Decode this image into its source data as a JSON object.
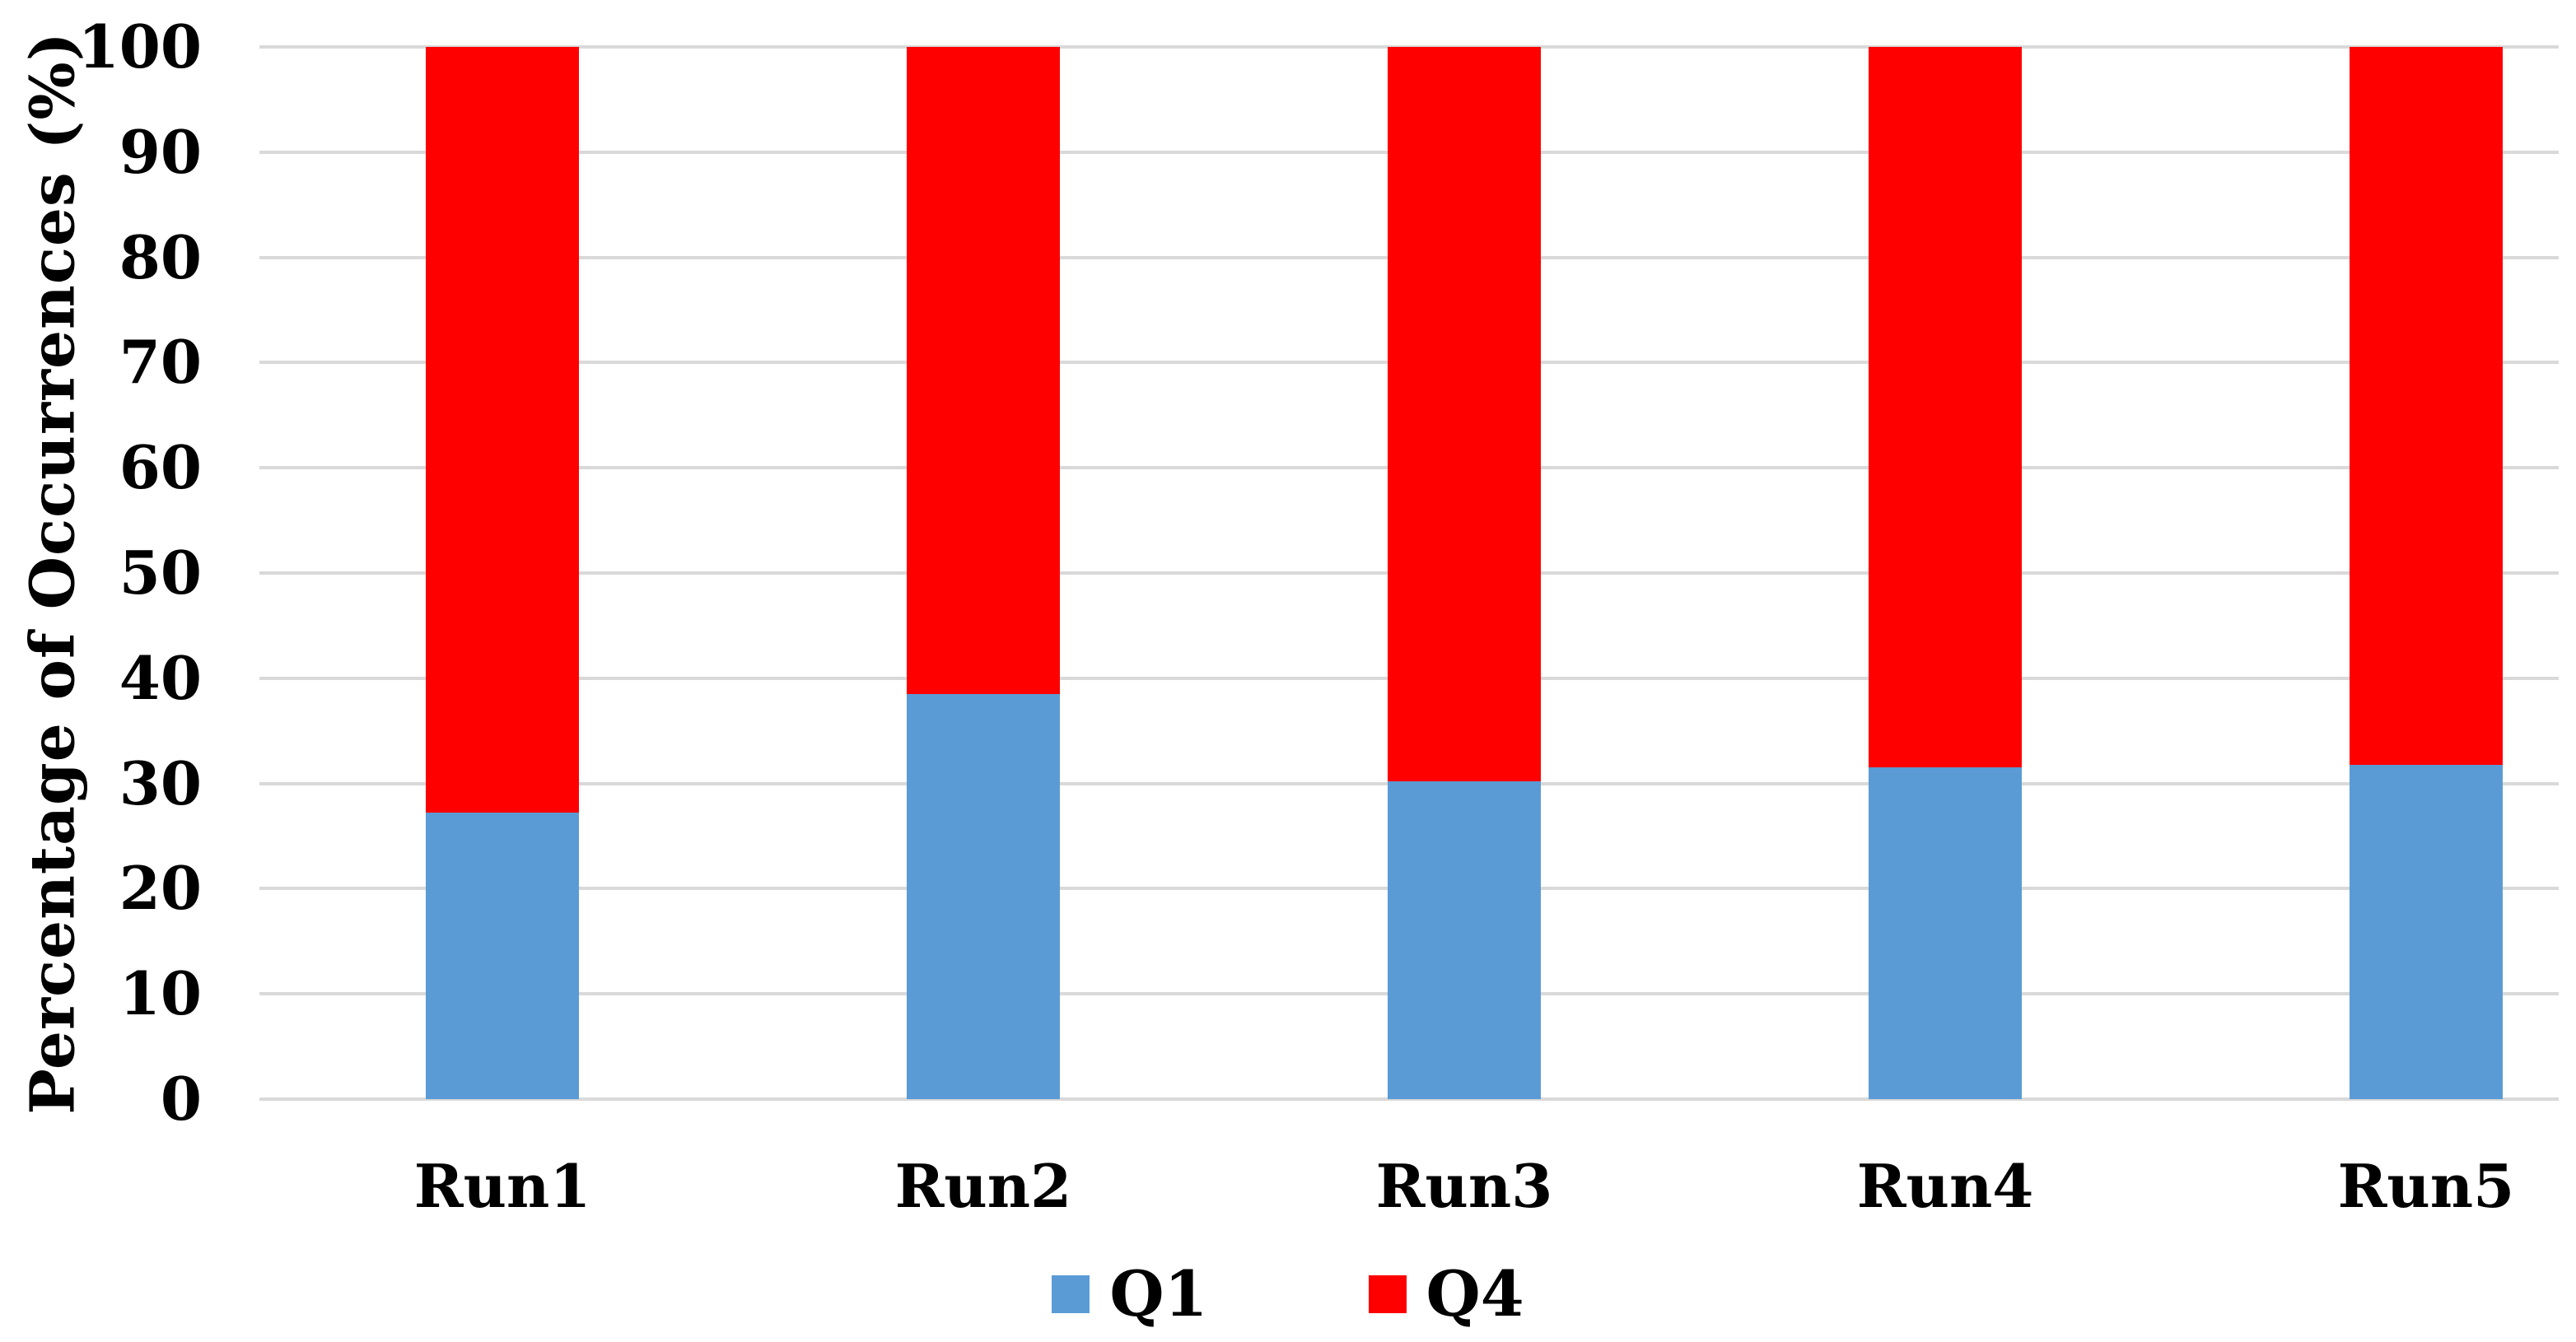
{
  "chart_data": {
    "type": "bar",
    "stacked": true,
    "title": "",
    "xlabel": "",
    "ylabel": "Percentage of Occurrences (%)",
    "categories": [
      "Run1",
      "Run2",
      "Run3",
      "Run4",
      "Run5"
    ],
    "series": [
      {
        "name": "Q1",
        "color": "#5B9BD5",
        "values": [
          27.2,
          38.5,
          30.2,
          31.5,
          31.8
        ]
      },
      {
        "name": "Q4",
        "color": "#FF0000",
        "values": [
          72.8,
          61.5,
          69.8,
          68.5,
          68.2
        ]
      }
    ],
    "ylim": [
      0,
      100
    ],
    "yticks": [
      0,
      10,
      20,
      30,
      40,
      50,
      60,
      70,
      80,
      90,
      100
    ],
    "grid": true,
    "gridline_color": "#D9D9D9",
    "legend_position": "bottom",
    "text_color": "#000000",
    "background": "#FFFFFF"
  }
}
